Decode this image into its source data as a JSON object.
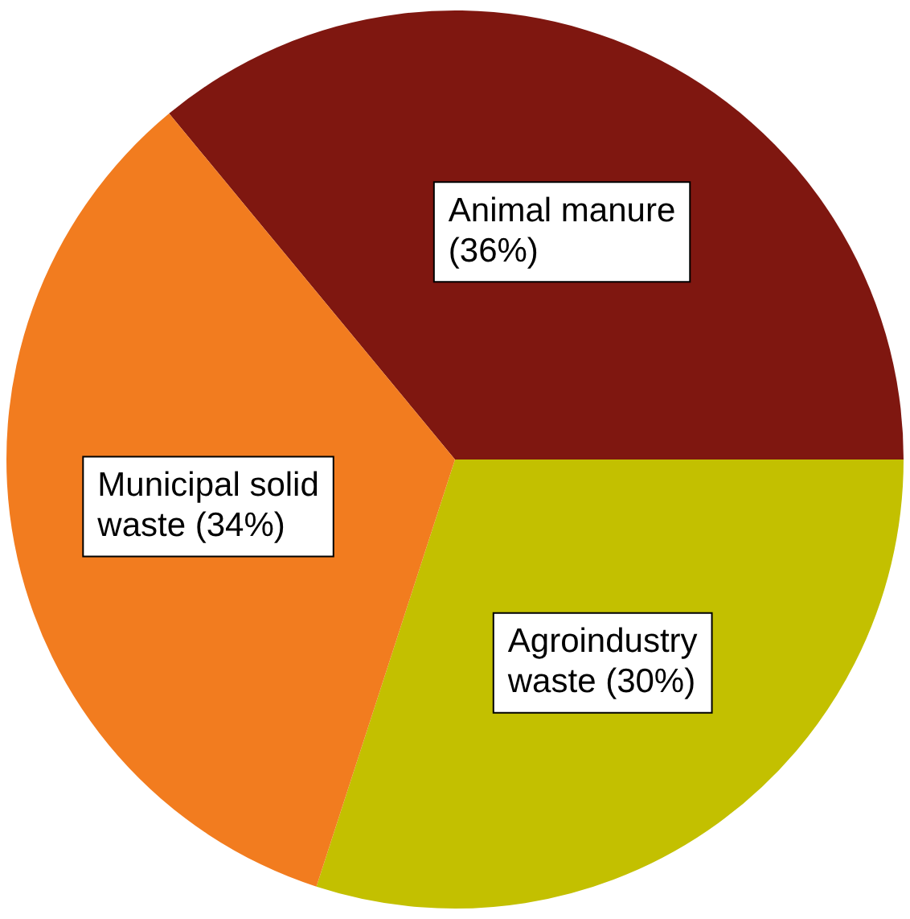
{
  "chart_data": {
    "type": "pie",
    "categories": [
      "Animal manure",
      "Agroindustry waste",
      "Municipal solid waste"
    ],
    "values": [
      36,
      30,
      34
    ],
    "colors": [
      "#7f1710",
      "#c3c000",
      "#f27c1f"
    ],
    "value_labels": [
      "(36%)",
      "(30%)",
      "(34%)"
    ],
    "legend": false
  }
}
